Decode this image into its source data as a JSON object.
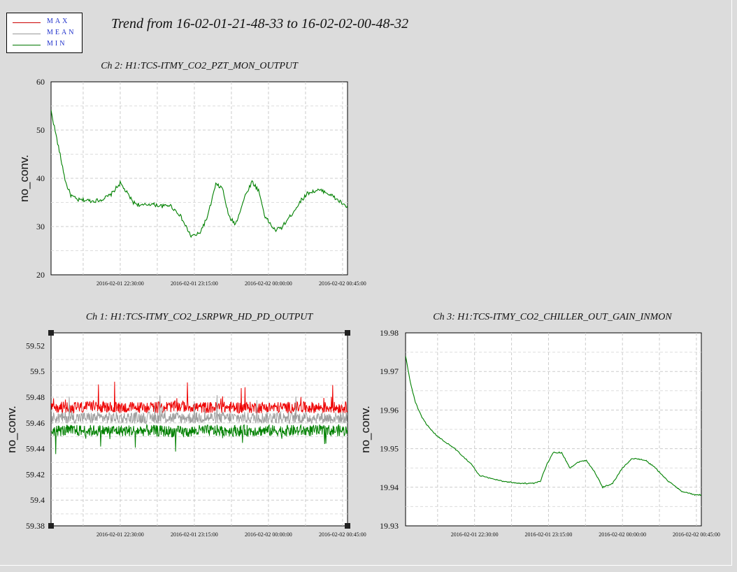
{
  "window": {
    "title": "Trend from 16-02-01-21-48-33 to 16-02-02-00-48-32"
  },
  "legend": {
    "items": [
      {
        "label": "MAX",
        "color": "#cc0000"
      },
      {
        "label": "MEAN",
        "color": "#999999"
      },
      {
        "label": "MIN",
        "color": "#007700"
      }
    ]
  },
  "chart_data": [
    {
      "type": "line",
      "title": "Ch 2: H1:TCS-ITMY_CO2_PZT_MON_OUTPUT",
      "ylabel": "no_conv.",
      "xlabel": "",
      "ylim": [
        20,
        60
      ],
      "yticks": [
        "60",
        "50",
        "40",
        "30",
        "20"
      ],
      "xtick_labels": [
        "2016-02-01 22:30:00",
        "2016-02-01 23:15:00",
        "2016-02-02 00:00:00",
        "2016-02-02 00:45:00"
      ],
      "grid": true,
      "x_minutes": [
        0,
        3,
        6,
        9,
        12,
        16,
        20,
        25,
        30,
        36,
        42,
        50,
        55,
        60,
        68,
        72,
        78,
        85,
        90,
        95,
        100,
        104,
        108,
        112,
        118,
        122,
        126,
        130,
        136,
        140,
        146,
        152,
        156,
        162,
        166,
        170,
        176,
        180
      ],
      "series": [
        {
          "name": "MIN",
          "values": [
            54,
            49,
            44,
            39,
            36.5,
            35.5,
            35.5,
            35.3,
            35.5,
            36.5,
            39,
            35,
            34.3,
            34.7,
            34.2,
            34.5,
            32.5,
            28,
            28.5,
            32,
            38.7,
            38,
            32,
            30.5,
            36.5,
            39.3,
            37.5,
            32,
            29.2,
            29.8,
            32.5,
            35.5,
            37,
            37.5,
            37.3,
            36.5,
            35,
            34
          ]
        }
      ]
    },
    {
      "type": "line",
      "title": "Ch 1: H1:TCS-ITMY_CO2_LSRPWR_HD_PD_OUTPUT",
      "ylabel": "no_conv.",
      "xlabel": "",
      "ylim": [
        59.38,
        59.53
      ],
      "yticks": [
        "59.52",
        "59.5",
        "59.48",
        "59.46",
        "59.44",
        "59.42",
        "59.4",
        "59.38"
      ],
      "xtick_labels": [
        "2016-02-01 22:30:00",
        "2016-02-01 23:15:00",
        "2016-02-02 00:00:00",
        "2016-02-02 00:45:00"
      ],
      "grid": true,
      "x_minutes": [
        0,
        30,
        60,
        82,
        90,
        105,
        120,
        150,
        180
      ],
      "series": [
        {
          "name": "MAX",
          "values": [
            59.472,
            59.472,
            59.472,
            59.473,
            59.472,
            59.472,
            59.472,
            59.472,
            59.472
          ]
        },
        {
          "name": "MEAN",
          "values": [
            59.464,
            59.464,
            59.464,
            59.464,
            59.464,
            59.464,
            59.464,
            59.464,
            59.464
          ]
        },
        {
          "name": "MIN",
          "values": [
            59.454,
            59.454,
            59.454,
            59.453,
            59.454,
            59.454,
            59.454,
            59.454,
            59.454
          ]
        }
      ]
    },
    {
      "type": "line",
      "title": "Ch 3: H1:TCS-ITMY_CO2_CHILLER_OUT_GAIN_INMON",
      "ylabel": "no_conv.",
      "xlabel": "",
      "ylim": [
        19.93,
        19.98
      ],
      "yticks": [
        "19.98",
        "19.97",
        "19.96",
        "19.95",
        "19.94",
        "19.93"
      ],
      "xtick_labels": [
        "2016-02-01 22:30:00",
        "2016-02-01 23:15:00",
        "2016-02-02 00:00:00",
        "2016-02-02 00:45:00"
      ],
      "grid": true,
      "x_minutes": [
        0,
        3,
        6,
        10,
        15,
        20,
        30,
        40,
        45,
        50,
        55,
        60,
        70,
        78,
        82,
        86,
        90,
        95,
        100,
        105,
        110,
        115,
        120,
        126,
        132,
        138,
        146,
        152,
        160,
        168,
        176,
        180
      ],
      "series": [
        {
          "name": "MIN",
          "values": [
            19.974,
            19.967,
            19.962,
            19.958,
            19.955,
            19.953,
            19.95,
            19.946,
            19.943,
            19.9425,
            19.942,
            19.9415,
            19.941,
            19.941,
            19.9415,
            19.946,
            19.949,
            19.949,
            19.945,
            19.9465,
            19.947,
            19.944,
            19.94,
            19.941,
            19.945,
            19.9475,
            19.947,
            19.945,
            19.9415,
            19.939,
            19.938,
            19.938
          ]
        }
      ]
    }
  ]
}
